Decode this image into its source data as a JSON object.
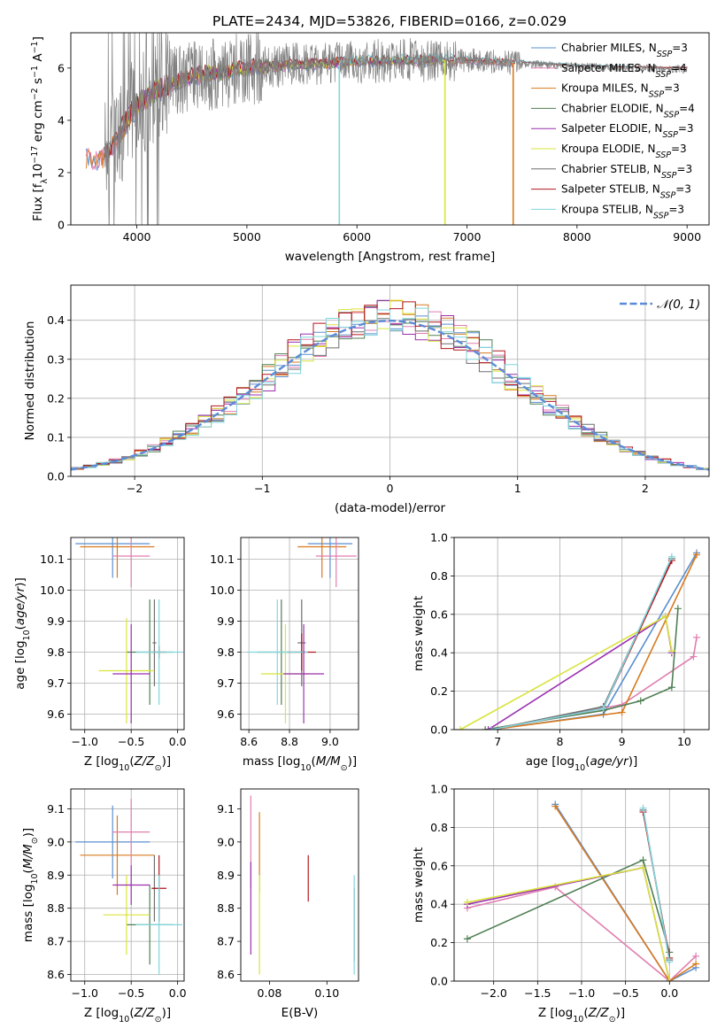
{
  "figure_title": "PLATE=2434, MJD=53826, FIBERID=0166, z=0.029",
  "colors": {
    "Chabrier MILES": "#5b8fd0",
    "Salpeter MILES": "#e07eb0",
    "Kroupa MILES": "#d87a1f",
    "Chabrier ELODIE": "#4f7f53",
    "Salpeter ELODIE": "#9b2fb0",
    "Kroupa ELODIE": "#d8e43a",
    "Chabrier STELIB": "#6e6e6e",
    "Salpeter STELIB": "#b3161d",
    "Kroupa STELIB": "#7fd6de",
    "normal_curve": "#5b8bd8",
    "grid": "#b0b0b0"
  },
  "chart_data": [
    {
      "id": "spectrum",
      "type": "line",
      "xlabel": "wavelength [Angstrom, rest frame]",
      "ylabel": "Flux [f_λ10^-17 erg cm^-2 s^-1 A^-1]",
      "xlim": [
        3400,
        9200
      ],
      "ylim": [
        0,
        7.35
      ],
      "xticks": [
        4000,
        5000,
        6000,
        7000,
        8000,
        9000
      ],
      "yticks": [
        0,
        2,
        4,
        6
      ],
      "grid": false,
      "legend_position": "top-right",
      "legend": [
        {
          "model": "Chabrier MILES",
          "n": "3"
        },
        {
          "model": "Salpeter MILES",
          "n": "4"
        },
        {
          "model": "Kroupa MILES",
          "n": "3"
        },
        {
          "model": "Chabrier ELODIE",
          "n": "4"
        },
        {
          "model": "Salpeter ELODIE",
          "n": "3"
        },
        {
          "model": "Kroupa ELODIE",
          "n": "3"
        },
        {
          "model": "Chabrier STELIB",
          "n": "3"
        },
        {
          "model": "Salpeter STELIB",
          "n": "3"
        },
        {
          "model": "Kroupa STELIB",
          "n": "3"
        }
      ],
      "continuum": {
        "x": [
          3700,
          3800,
          3900,
          4000,
          4200,
          4500,
          5000,
          5500,
          6000,
          6500,
          7000,
          7400,
          8000,
          8500,
          9000
        ],
        "y": [
          2.6,
          3.2,
          3.9,
          4.6,
          5.2,
          5.7,
          6.0,
          6.15,
          6.25,
          6.3,
          6.3,
          6.2,
          6.05,
          6.0,
          5.95
        ]
      },
      "series": [
        {
          "name": "Chabrier MILES",
          "xrange": [
            3540,
            7420
          ]
        },
        {
          "name": "Salpeter MILES",
          "xrange": [
            3540,
            7420
          ]
        },
        {
          "name": "Kroupa MILES",
          "xrange": [
            3540,
            7420
          ]
        },
        {
          "name": "Chabrier ELODIE",
          "xrange": [
            3900,
            6800
          ]
        },
        {
          "name": "Salpeter ELODIE",
          "xrange": [
            3900,
            6800
          ]
        },
        {
          "name": "Kroupa ELODIE",
          "xrange": [
            3900,
            6800
          ]
        },
        {
          "name": "Chabrier STELIB",
          "xrange": [
            3700,
            9000
          ]
        },
        {
          "name": "Salpeter STELIB",
          "xrange": [
            3700,
            9000
          ]
        },
        {
          "name": "Kroupa STELIB",
          "xrange": [
            5840,
            8500
          ]
        }
      ],
      "data_line": {
        "color": "#808080",
        "xrange": [
          3700,
          9000
        ]
      },
      "dropouts": [
        {
          "x": 5840,
          "color": "#7fd6de"
        },
        {
          "x": 6800,
          "color": "#d8e43a"
        },
        {
          "x": 7420,
          "color": "#d87a1f"
        }
      ]
    },
    {
      "id": "residuals",
      "type": "histogram",
      "xlabel": "(data-model)/error",
      "ylabel": "Normed distribution",
      "xlim": [
        -2.5,
        2.5
      ],
      "ylim": [
        0,
        0.49
      ],
      "xticks": [
        -2,
        -1,
        0,
        1,
        2
      ],
      "yticks": [
        0.0,
        0.1,
        0.2,
        0.3,
        0.4
      ],
      "grid": true,
      "bin_width": 0.1,
      "normal_label": "𝒩(0, 1)",
      "legend_position": "top-right"
    },
    {
      "id": "age_vs_Z",
      "type": "errorbar",
      "xlabel": "Z [log10(Z/Z⊙)]",
      "ylabel": "age [log10(age/yr)]",
      "xlim": [
        -1.15,
        0.07
      ],
      "ylim": [
        9.55,
        10.17
      ],
      "xticks": [
        -1.0,
        -0.5,
        0.0
      ],
      "yticks": [
        9.6,
        9.7,
        9.8,
        9.9,
        10.0,
        10.1
      ],
      "grid": true,
      "points": [
        {
          "model": "Chabrier MILES",
          "x": -0.7,
          "xerr": 0.4,
          "y": 10.15,
          "yerr": 0.11
        },
        {
          "model": "Kroupa MILES",
          "x": -0.65,
          "xerr": 0.4,
          "y": 10.14,
          "yerr": 0.1
        },
        {
          "model": "Salpeter MILES",
          "x": -0.5,
          "xerr": 0.2,
          "y": 10.11,
          "yerr": 0.1
        },
        {
          "model": "Chabrier STELIB",
          "x": -0.25,
          "xerr": 0.02,
          "y": 9.83,
          "yerr": 0.14
        },
        {
          "model": "Salpeter STELIB",
          "x": -0.2,
          "xerr": 0.08,
          "y": 9.8,
          "yerr": 0.02
        },
        {
          "model": "Chabrier ELODIE",
          "x": -0.3,
          "xerr": 0.25,
          "y": 9.8,
          "yerr": 0.17
        },
        {
          "model": "Kroupa STELIB",
          "x": -0.2,
          "xerr": 0.25,
          "y": 9.8,
          "yerr": 0.17
        },
        {
          "model": "Kroupa ELODIE",
          "x": -0.55,
          "xerr": 0.3,
          "y": 9.74,
          "yerr": 0.17
        },
        {
          "model": "Salpeter ELODIE",
          "x": -0.5,
          "xerr": 0.2,
          "y": 9.73,
          "yerr": 0.16
        }
      ]
    },
    {
      "id": "age_vs_mass",
      "type": "errorbar",
      "xlabel": "mass [log10(M/M⊙)]",
      "xlim": [
        8.56,
        9.14
      ],
      "ylim": [
        9.55,
        10.17
      ],
      "xticks": [
        8.6,
        8.8,
        9.0
      ],
      "yticks": [
        9.6,
        9.7,
        9.8,
        9.9,
        10.0,
        10.1
      ],
      "grid": true,
      "points": [
        {
          "model": "Chabrier MILES",
          "x": 9.0,
          "xerr": 0.11,
          "y": 10.15,
          "yerr": 0.11
        },
        {
          "model": "Kroupa MILES",
          "x": 8.96,
          "xerr": 0.12,
          "y": 10.14,
          "yerr": 0.1
        },
        {
          "model": "Salpeter MILES",
          "x": 9.03,
          "xerr": 0.1,
          "y": 10.11,
          "yerr": 0.1
        },
        {
          "model": "Chabrier STELIB",
          "x": 8.86,
          "xerr": 0.02,
          "y": 9.83,
          "yerr": 0.14
        },
        {
          "model": "Salpeter STELIB",
          "x": 8.86,
          "xerr": 0.07,
          "y": 9.8,
          "yerr": 0.06
        },
        {
          "model": "Chabrier ELODIE",
          "x": 8.76,
          "xerr": 0.12,
          "y": 9.8,
          "yerr": 0.17
        },
        {
          "model": "Kroupa STELIB",
          "x": 8.74,
          "xerr": 0.15,
          "y": 9.8,
          "yerr": 0.17
        },
        {
          "model": "Kroupa ELODIE",
          "x": 8.78,
          "xerr": 0.12,
          "y": 9.73,
          "yerr": 0.16
        },
        {
          "model": "Salpeter ELODIE",
          "x": 8.87,
          "xerr": 0.1,
          "y": 9.73,
          "yerr": 0.16
        }
      ]
    },
    {
      "id": "mass_weight_vs_age",
      "type": "line",
      "xlabel": "age [log10(age/yr)]",
      "ylabel": "mass weight",
      "xlim": [
        6.3,
        10.4
      ],
      "ylim": [
        0.0,
        1.0
      ],
      "xticks": [
        7,
        8,
        9,
        10
      ],
      "yticks": [
        0.0,
        0.2,
        0.4,
        0.6,
        0.8,
        1.0
      ],
      "grid": true,
      "series": [
        {
          "name": "Chabrier MILES",
          "x": [
            6.9,
            8.7,
            10.2
          ],
          "y": [
            0.0,
            0.08,
            0.92
          ]
        },
        {
          "name": "Salpeter MILES",
          "x": [
            6.9,
            9.0,
            10.15,
            10.2
          ],
          "y": [
            0.0,
            0.13,
            0.38,
            0.48
          ]
        },
        {
          "name": "Kroupa MILES",
          "x": [
            6.9,
            9.0,
            10.2
          ],
          "y": [
            0.0,
            0.09,
            0.91
          ]
        },
        {
          "name": "Chabrier ELODIE",
          "x": [
            6.8,
            8.7,
            9.3,
            9.8,
            9.9
          ],
          "y": [
            0.0,
            0.1,
            0.15,
            0.22,
            0.63
          ]
        },
        {
          "name": "Salpeter ELODIE",
          "x": [
            6.85,
            9.7,
            9.8
          ],
          "y": [
            0.0,
            0.59,
            0.4
          ]
        },
        {
          "name": "Kroupa ELODIE",
          "x": [
            6.4,
            9.7,
            9.8
          ],
          "y": [
            0.0,
            0.59,
            0.41
          ]
        },
        {
          "name": "Chabrier STELIB",
          "x": [
            6.9,
            8.7,
            9.8
          ],
          "y": [
            0.0,
            0.12,
            0.89
          ]
        },
        {
          "name": "Salpeter STELIB",
          "x": [
            6.9,
            8.7,
            9.8
          ],
          "y": [
            0.0,
            0.11,
            0.88
          ]
        },
        {
          "name": "Kroupa STELIB",
          "x": [
            6.9,
            8.7,
            9.8
          ],
          "y": [
            0.0,
            0.11,
            0.9
          ]
        }
      ]
    },
    {
      "id": "mass_vs_Z",
      "type": "errorbar",
      "xlabel": "Z [log10(Z/Z⊙)]",
      "ylabel": "mass [log10(M/M⊙)]",
      "xlim": [
        -1.15,
        0.07
      ],
      "ylim": [
        8.58,
        9.16
      ],
      "xticks": [
        -1.0,
        -0.5,
        0.0
      ],
      "yticks": [
        8.6,
        8.7,
        8.8,
        8.9,
        9.0,
        9.1
      ],
      "grid": true,
      "points": [
        {
          "model": "Chabrier MILES",
          "x": -0.7,
          "xerr": 0.4,
          "y": 9.0,
          "yerr": 0.11
        },
        {
          "model": "Kroupa MILES",
          "x": -0.65,
          "xerr": 0.4,
          "y": 8.96,
          "yerr": 0.12
        },
        {
          "model": "Salpeter MILES",
          "x": -0.5,
          "xerr": 0.2,
          "y": 9.03,
          "yerr": 0.1
        },
        {
          "model": "Chabrier STELIB",
          "x": -0.25,
          "xerr": 0.02,
          "y": 8.86,
          "yerr": 0.1
        },
        {
          "model": "Salpeter STELIB",
          "x": -0.2,
          "xerr": 0.08,
          "y": 8.86,
          "yerr": 0.1
        },
        {
          "model": "Chabrier ELODIE",
          "x": -0.3,
          "xerr": 0.25,
          "y": 8.75,
          "yerr": 0.12
        },
        {
          "model": "Kroupa STELIB",
          "x": -0.2,
          "xerr": 0.25,
          "y": 8.75,
          "yerr": 0.15
        },
        {
          "model": "Kroupa ELODIE",
          "x": -0.55,
          "xerr": 0.25,
          "y": 8.78,
          "yerr": 0.12
        },
        {
          "model": "Salpeter ELODIE",
          "x": -0.5,
          "xerr": 0.2,
          "y": 8.87,
          "yerr": 0.06
        }
      ]
    },
    {
      "id": "mass_vs_EBV",
      "type": "errorbar",
      "xlabel": "E(B-V)",
      "xlim": [
        0.07,
        0.111
      ],
      "ylim": [
        8.58,
        9.16
      ],
      "xticks": [
        0.08,
        0.1
      ],
      "yticks": [
        8.6,
        8.7,
        8.8,
        8.9,
        9.0,
        9.1
      ],
      "grid": false,
      "points": [
        {
          "model": "Salpeter MILES",
          "x": 0.0735,
          "y": 9.0,
          "yerr": 0.14
        },
        {
          "model": "Salpeter ELODIE",
          "x": 0.0735,
          "y": 8.8,
          "yerr": 0.14
        },
        {
          "model": "Kroupa MILES",
          "x": 0.0765,
          "y": 8.97,
          "yerr": 0.12
        },
        {
          "model": "Kroupa ELODIE",
          "x": 0.0765,
          "y": 8.75,
          "yerr": 0.15
        },
        {
          "model": "Salpeter STELIB",
          "x": 0.0935,
          "y": 8.89,
          "yerr": 0.07
        },
        {
          "model": "Chabrier STELIB",
          "x": 0.1095,
          "y": 8.75,
          "yerr": 0.11
        },
        {
          "model": "Kroupa STELIB",
          "x": 0.1095,
          "y": 8.75,
          "yerr": 0.15
        }
      ]
    },
    {
      "id": "mass_weight_vs_Z",
      "type": "line",
      "xlabel": "Z [log10(Z/Z⊙)]",
      "ylabel": "mass weight",
      "xlim": [
        -2.45,
        0.45
      ],
      "ylim": [
        0.0,
        1.0
      ],
      "xticks": [
        -2.0,
        -1.5,
        -1.0,
        -0.5,
        0.0
      ],
      "yticks": [
        0.0,
        0.2,
        0.4,
        0.6,
        0.8,
        1.0
      ],
      "grid": true,
      "series": [
        {
          "name": "Chabrier MILES",
          "x": [
            -1.3,
            0.0,
            0.3
          ],
          "y": [
            0.92,
            0.0,
            0.07
          ]
        },
        {
          "name": "Salpeter MILES",
          "x": [
            -2.3,
            -1.3,
            0.0,
            0.3
          ],
          "y": [
            0.38,
            0.49,
            0.0,
            0.13
          ]
        },
        {
          "name": "Kroupa MILES",
          "x": [
            -1.3,
            0.0,
            0.3
          ],
          "y": [
            0.91,
            0.0,
            0.09
          ]
        },
        {
          "name": "Chabrier ELODIE",
          "x": [
            -2.3,
            -0.3,
            0.0
          ],
          "y": [
            0.22,
            0.63,
            0.15
          ]
        },
        {
          "name": "Salpeter ELODIE",
          "x": [
            -2.3,
            -0.3,
            0.0
          ],
          "y": [
            0.4,
            0.59,
            0.0
          ]
        },
        {
          "name": "Kroupa ELODIE",
          "x": [
            -2.3,
            -0.3,
            0.0
          ],
          "y": [
            0.41,
            0.59,
            0.0
          ]
        },
        {
          "name": "Chabrier STELIB",
          "x": [
            -0.3,
            0.0
          ],
          "y": [
            0.89,
            0.11
          ]
        },
        {
          "name": "Salpeter STELIB",
          "x": [
            -0.3,
            0.0
          ],
          "y": [
            0.88,
            0.12
          ]
        },
        {
          "name": "Kroupa STELIB",
          "x": [
            -0.3,
            0.0
          ],
          "y": [
            0.9,
            0.1
          ]
        }
      ]
    }
  ]
}
